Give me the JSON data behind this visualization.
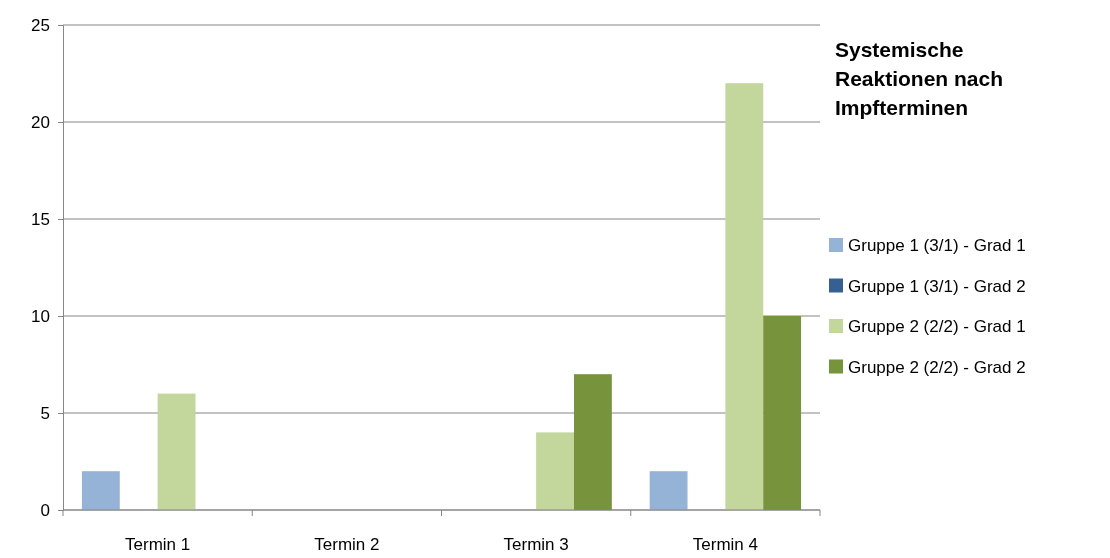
{
  "chart_data": {
    "type": "bar",
    "title": "Systemische Reaktionen nach Impfterminen",
    "categories": [
      "Termin 1",
      "Termin 2",
      "Termin 3",
      "Termin 4"
    ],
    "series": [
      {
        "name": "Gruppe 1 (3/1) - Grad 1",
        "color": "#95b3d7",
        "values": [
          2,
          0,
          0,
          2
        ]
      },
      {
        "name": "Gruppe 1 (3/1) - Grad 2",
        "color": "#366092",
        "values": [
          0,
          0,
          0,
          0
        ]
      },
      {
        "name": "Gruppe 2 (2/2) - Grad 1",
        "color": "#c3d69b",
        "values": [
          6,
          0,
          4,
          22
        ]
      },
      {
        "name": "Gruppe 2 (2/2) - Grad 2",
        "color": "#77933c",
        "values": [
          0,
          0,
          7,
          10
        ]
      }
    ],
    "ylim": [
      0,
      25
    ],
    "yticks": [
      0,
      5,
      10,
      15,
      20,
      25
    ],
    "grid": "y",
    "legend": "right"
  }
}
